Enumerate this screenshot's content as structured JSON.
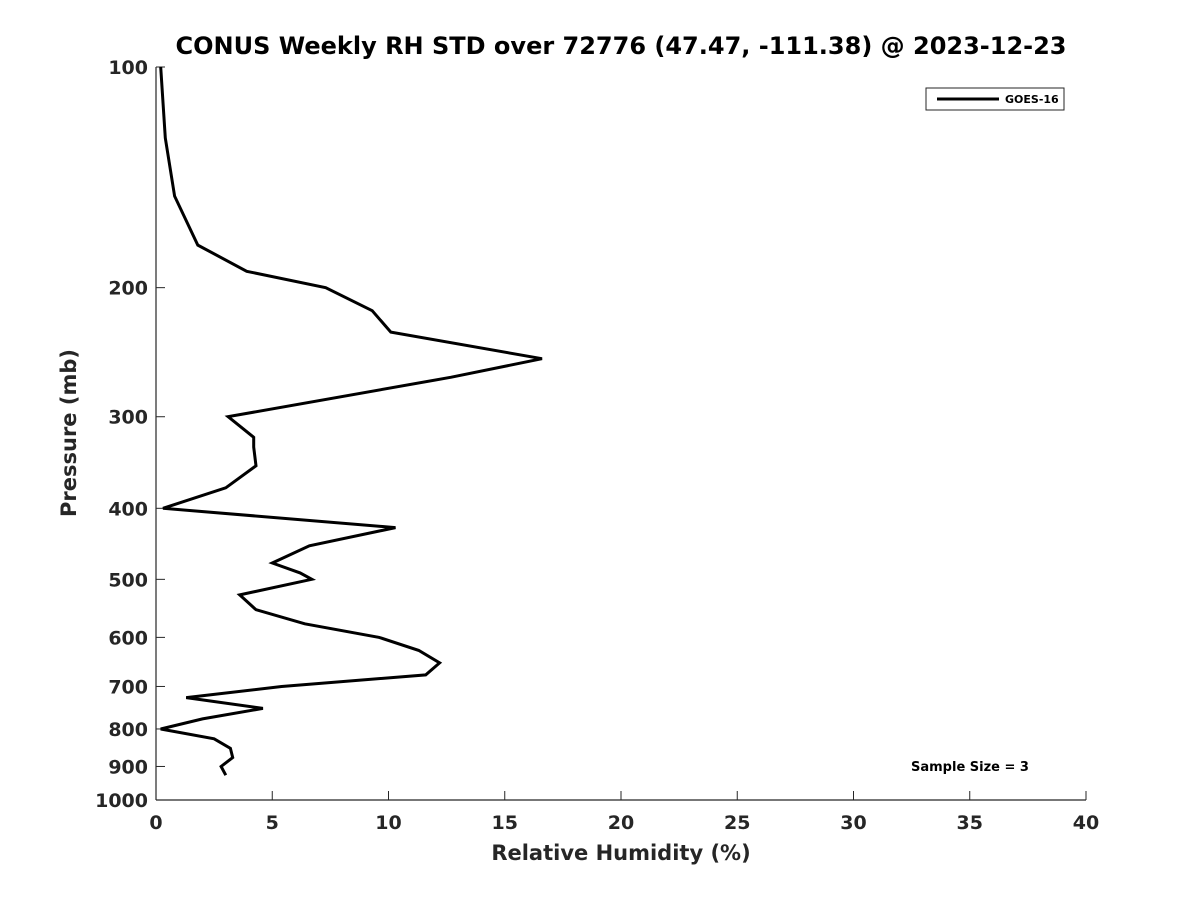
{
  "chart_data": {
    "type": "line",
    "title": "CONUS Weekly RH STD over 72776 (47.47, -111.38) @ 2023-12-23",
    "xlabel": "Relative Humidity (%)",
    "ylabel": "Pressure (mb)",
    "xlim": [
      0,
      40
    ],
    "ylim": [
      100,
      1000
    ],
    "y_scale": "log",
    "y_reversed": true,
    "x_ticks": [
      0,
      5,
      10,
      15,
      20,
      25,
      30,
      35,
      40
    ],
    "y_ticks": [
      100,
      200,
      300,
      400,
      500,
      600,
      700,
      800,
      900,
      1000
    ],
    "grid": false,
    "legend_position": "top-right",
    "series": [
      {
        "name": "GOES-16",
        "color": "#000000",
        "points": [
          {
            "x": 0.2,
            "y": 100
          },
          {
            "x": 0.4,
            "y": 125
          },
          {
            "x": 0.8,
            "y": 150
          },
          {
            "x": 1.8,
            "y": 175
          },
          {
            "x": 3.9,
            "y": 190
          },
          {
            "x": 7.3,
            "y": 200
          },
          {
            "x": 9.3,
            "y": 215
          },
          {
            "x": 10.1,
            "y": 230
          },
          {
            "x": 16.6,
            "y": 250
          },
          {
            "x": 12.7,
            "y": 265
          },
          {
            "x": 3.1,
            "y": 300
          },
          {
            "x": 4.2,
            "y": 320
          },
          {
            "x": 4.2,
            "y": 330
          },
          {
            "x": 4.3,
            "y": 350
          },
          {
            "x": 3.0,
            "y": 375
          },
          {
            "x": 0.3,
            "y": 400
          },
          {
            "x": 10.3,
            "y": 425
          },
          {
            "x": 6.6,
            "y": 450
          },
          {
            "x": 5.0,
            "y": 475
          },
          {
            "x": 6.2,
            "y": 490
          },
          {
            "x": 6.7,
            "y": 500
          },
          {
            "x": 3.6,
            "y": 525
          },
          {
            "x": 4.3,
            "y": 550
          },
          {
            "x": 6.4,
            "y": 575
          },
          {
            "x": 9.6,
            "y": 600
          },
          {
            "x": 11.3,
            "y": 625
          },
          {
            "x": 12.2,
            "y": 650
          },
          {
            "x": 11.6,
            "y": 675
          },
          {
            "x": 5.4,
            "y": 700
          },
          {
            "x": 1.3,
            "y": 725
          },
          {
            "x": 4.6,
            "y": 750
          },
          {
            "x": 2.0,
            "y": 775
          },
          {
            "x": 0.2,
            "y": 800
          },
          {
            "x": 2.5,
            "y": 825
          },
          {
            "x": 3.2,
            "y": 850
          },
          {
            "x": 3.3,
            "y": 875
          },
          {
            "x": 2.8,
            "y": 900
          },
          {
            "x": 3.0,
            "y": 925
          }
        ]
      }
    ],
    "annotation": "Sample Size = 3"
  }
}
